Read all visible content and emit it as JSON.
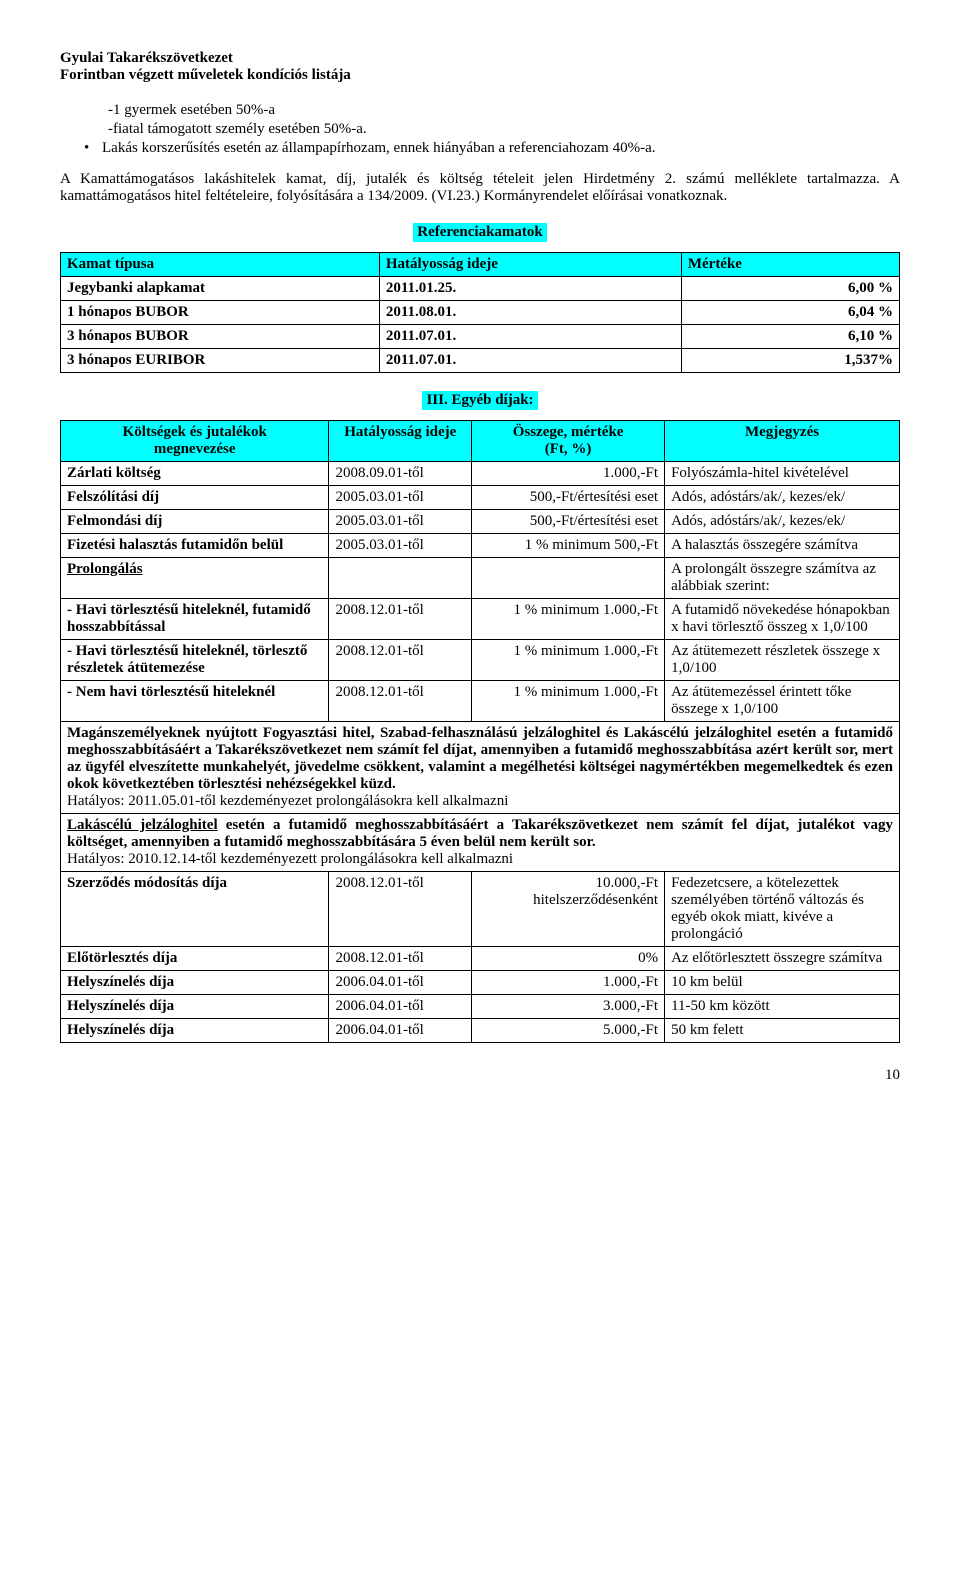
{
  "header": {
    "line1": "Gyulai Takarékszövetkezet",
    "line2": "Forintban végzett műveletek kondíciós listája"
  },
  "intro": {
    "line1": "-1 gyermek esetében 50%-a",
    "line2": "-fiatal támogatott személy esetében 50%-a.",
    "bullet1": "Lakás korszerűsítés esetén az állampapírhozam, ennek hiányában a referenciahozam 40%-a."
  },
  "para1": "A Kamattámogatásos lakáshitelek kamat, díj, jutalék és költség tételeit jelen Hirdetmény 2. számú melléklete tartalmazza. A kamattámogatásos hitel feltételeire, folyósítására a 134/2009. (VI.23.) Kormányrendelet előírásai vonatkoznak.",
  "ref_label": "Referenciakamatok",
  "ref_table": {
    "headers": [
      "Kamat típusa",
      "Hatályosság ideje",
      "Mértéke"
    ],
    "rows": [
      [
        "Jegybanki alapkamat",
        "2011.01.25.",
        "6,00 %"
      ],
      [
        "1 hónapos BUBOR",
        "2011.08.01.",
        "6,04 %"
      ],
      [
        "3 hónapos BUBOR",
        "2011.07.01.",
        "6,10 %"
      ],
      [
        "3 hónapos EURIBOR",
        "2011.07.01.",
        "1,537%"
      ]
    ]
  },
  "sec3_label": "III. Egyéb díjak:",
  "fees": {
    "headers": [
      "Költségek és jutalékok\nmegnevezése",
      "Hatályosság ideje",
      "Összege, mértéke\n(Ft, %)",
      "Megjegyzés"
    ],
    "rows": [
      {
        "c0": "Zárlati költség",
        "c1": "2008.09.01-től",
        "c2": "1.000,-Ft",
        "c3": "Folyószámla-hitel kivételével"
      },
      {
        "c0": "Felszólítási díj",
        "c1": "2005.03.01-től",
        "c2": "500,-Ft/értesítési eset",
        "c3": "Adós, adóstárs/ak/, kezes/ek/"
      },
      {
        "c0": "Felmondási díj",
        "c1": "2005.03.01-től",
        "c2": "500,-Ft/értesítési eset",
        "c3": "Adós, adóstárs/ak/, kezes/ek/"
      },
      {
        "c0": "Fizetési halasztás futamidőn belül",
        "c1": "2005.03.01-től",
        "c2": "1 % minimum 500,-Ft",
        "c3": "A halasztás összegére számítva"
      },
      {
        "c0": "Prolongálás",
        "c1": "",
        "c2": "",
        "c3": "A prolongált összegre számítva az alábbiak szerint:",
        "u": true
      },
      {
        "c0": "- Havi törlesztésű hiteleknél, futamidő hosszabbítással",
        "c1": "2008.12.01-től",
        "c2": "1 % minimum 1.000,-Ft",
        "c3": "A futamidő növekedése hónapokban x havi törlesztő összeg x 1,0/100"
      },
      {
        "c0": "- Havi törlesztésű hiteleknél, törlesztő részletek átütemezése",
        "c1": "2008.12.01-től",
        "c2": "1 % minimum 1.000,-Ft",
        "c3": "Az átütemezett részletek összege  x 1,0/100"
      },
      {
        "c0": "- Nem havi törlesztésű hiteleknél",
        "c1": "2008.12.01-től",
        "c2": "1 % minimum 1.000,-Ft",
        "c3": "Az átütemezéssel érintett tőke összege x 1,0/100"
      }
    ],
    "span1": {
      "bold": "Magánszemélyeknek nyújtott Fogyasztási hitel, Szabad-felhasználású jelzáloghitel és Lakáscélú jelzáloghitel esetén a futamidő meghosszabbításáért a Takarékszövetkezet nem számít fel díjat, amennyiben a futamidő meghosszabbítása azért került sor, mert az ügyfél elveszítette munkahelyét, jövedelme csökkent, valamint a megélhetési költségei nagymértékben megemelkedtek és ezen okok következtében törlesztési nehézségekkel küzd.",
      "normal": "Hatályos: 2011.05.01-től kezdeményezet prolongálásokra kell alkalmazni"
    },
    "span2": {
      "bold_u": "Lakáscélú jelzáloghitel",
      "bold": " esetén a futamidő meghosszabbításáért a Takarékszövetkezet nem számít fel díjat, jutalékot vagy költséget, amennyiben a futamidő meghosszabbítására 5 éven belül nem került sor.",
      "normal": "Hatályos: 2010.12.14-től kezdeményezett prolongálásokra kell alkalmazni"
    },
    "rows2": [
      {
        "c0": "Szerződés módosítás díja",
        "c1": "2008.12.01-től",
        "c2": "10.000,-Ft\nhitelszerződésenként",
        "c3": "Fedezetcsere, a kötelezettek személyében történő változás és egyéb okok miatt, kivéve a prolongáció"
      },
      {
        "c0": "Előtörlesztés díja",
        "c1": "2008.12.01-től",
        "c2": "0%",
        "c3": "Az előtörlesztett összegre számítva"
      },
      {
        "c0": "Helyszínelés díja",
        "c1": "2006.04.01-től",
        "c2": "1.000,-Ft",
        "c3": "10 km belül"
      },
      {
        "c0": "Helyszínelés díja",
        "c1": "2006.04.01-től",
        "c2": "3.000,-Ft",
        "c3": "11-50 km között"
      },
      {
        "c0": "Helyszínelés díja",
        "c1": "2006.04.01-től",
        "c2": "5.000,-Ft",
        "c3": "50 km felett"
      }
    ]
  },
  "page_number": "10",
  "col_widths": {
    "c0": "32%",
    "c1": "17%",
    "c2": "23%",
    "c3": "28%"
  }
}
